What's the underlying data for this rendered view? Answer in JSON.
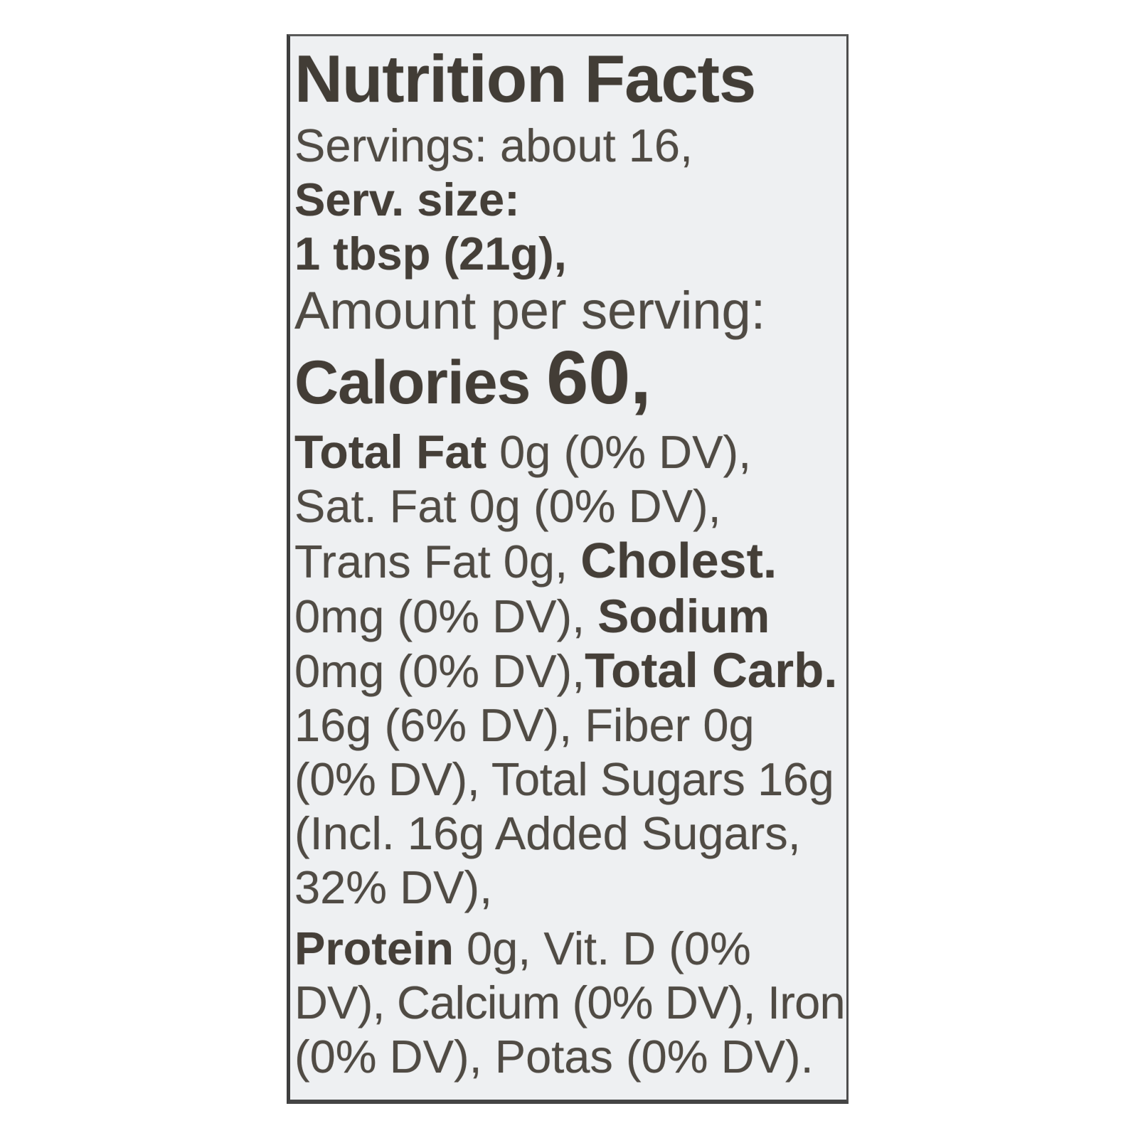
{
  "colors": {
    "page_background": "#ffffff",
    "label_background": "#eef0f2",
    "border_dark": "#454545",
    "text_bold": "#453f38",
    "text_regular": "#504b44"
  },
  "label": {
    "title": "Nutrition Facts",
    "servings_line": "Servings: about 16,",
    "serving_size_label": "Serv. size:",
    "serving_size_value": "1 tbsp (21g),",
    "amount_per_serving": "Amount per serving:",
    "calories_word": "Calories ",
    "calories_value": "60,",
    "body_lines": [
      {
        "segments": [
          {
            "text": "Total Fat",
            "bold": true
          },
          {
            "text": " 0g (0% DV),",
            "bold": false
          }
        ]
      },
      {
        "segments": [
          {
            "text": "Sat. Fat 0g (0% DV),",
            "bold": false
          }
        ]
      },
      {
        "segments": [
          {
            "text": "Trans Fat 0g, ",
            "bold": false
          },
          {
            "text": "Cholest.",
            "bold": true
          }
        ]
      },
      {
        "segments": [
          {
            "text": "0mg (0% DV), ",
            "bold": false
          },
          {
            "text": "Sodium",
            "bold": true
          }
        ]
      },
      {
        "segments": [
          {
            "text": "0mg (0% DV),",
            "bold": false
          },
          {
            "text": "Total Carb.",
            "bold": true
          }
        ]
      },
      {
        "segments": [
          {
            "text": "16g (6% DV), Fiber 0g",
            "bold": false
          }
        ]
      },
      {
        "segments": [
          {
            "text": "(0% DV), Total Sugars 16g",
            "bold": false
          }
        ]
      },
      {
        "segments": [
          {
            "text": "(Incl. 16g Added Sugars,",
            "bold": false
          }
        ]
      },
      {
        "segments": [
          {
            "text": "32% DV),",
            "bold": false
          }
        ]
      },
      {
        "segments": [
          {
            "text": "Protein",
            "bold": true
          },
          {
            "text": " 0g, Vit. D (0%",
            "bold": false
          }
        ]
      },
      {
        "segments": [
          {
            "text": "DV), Calcium (0% DV), Iron",
            "bold": false
          }
        ]
      },
      {
        "segments": [
          {
            "text": "(0% DV), Potas (0% DV).",
            "bold": false
          }
        ]
      }
    ]
  }
}
